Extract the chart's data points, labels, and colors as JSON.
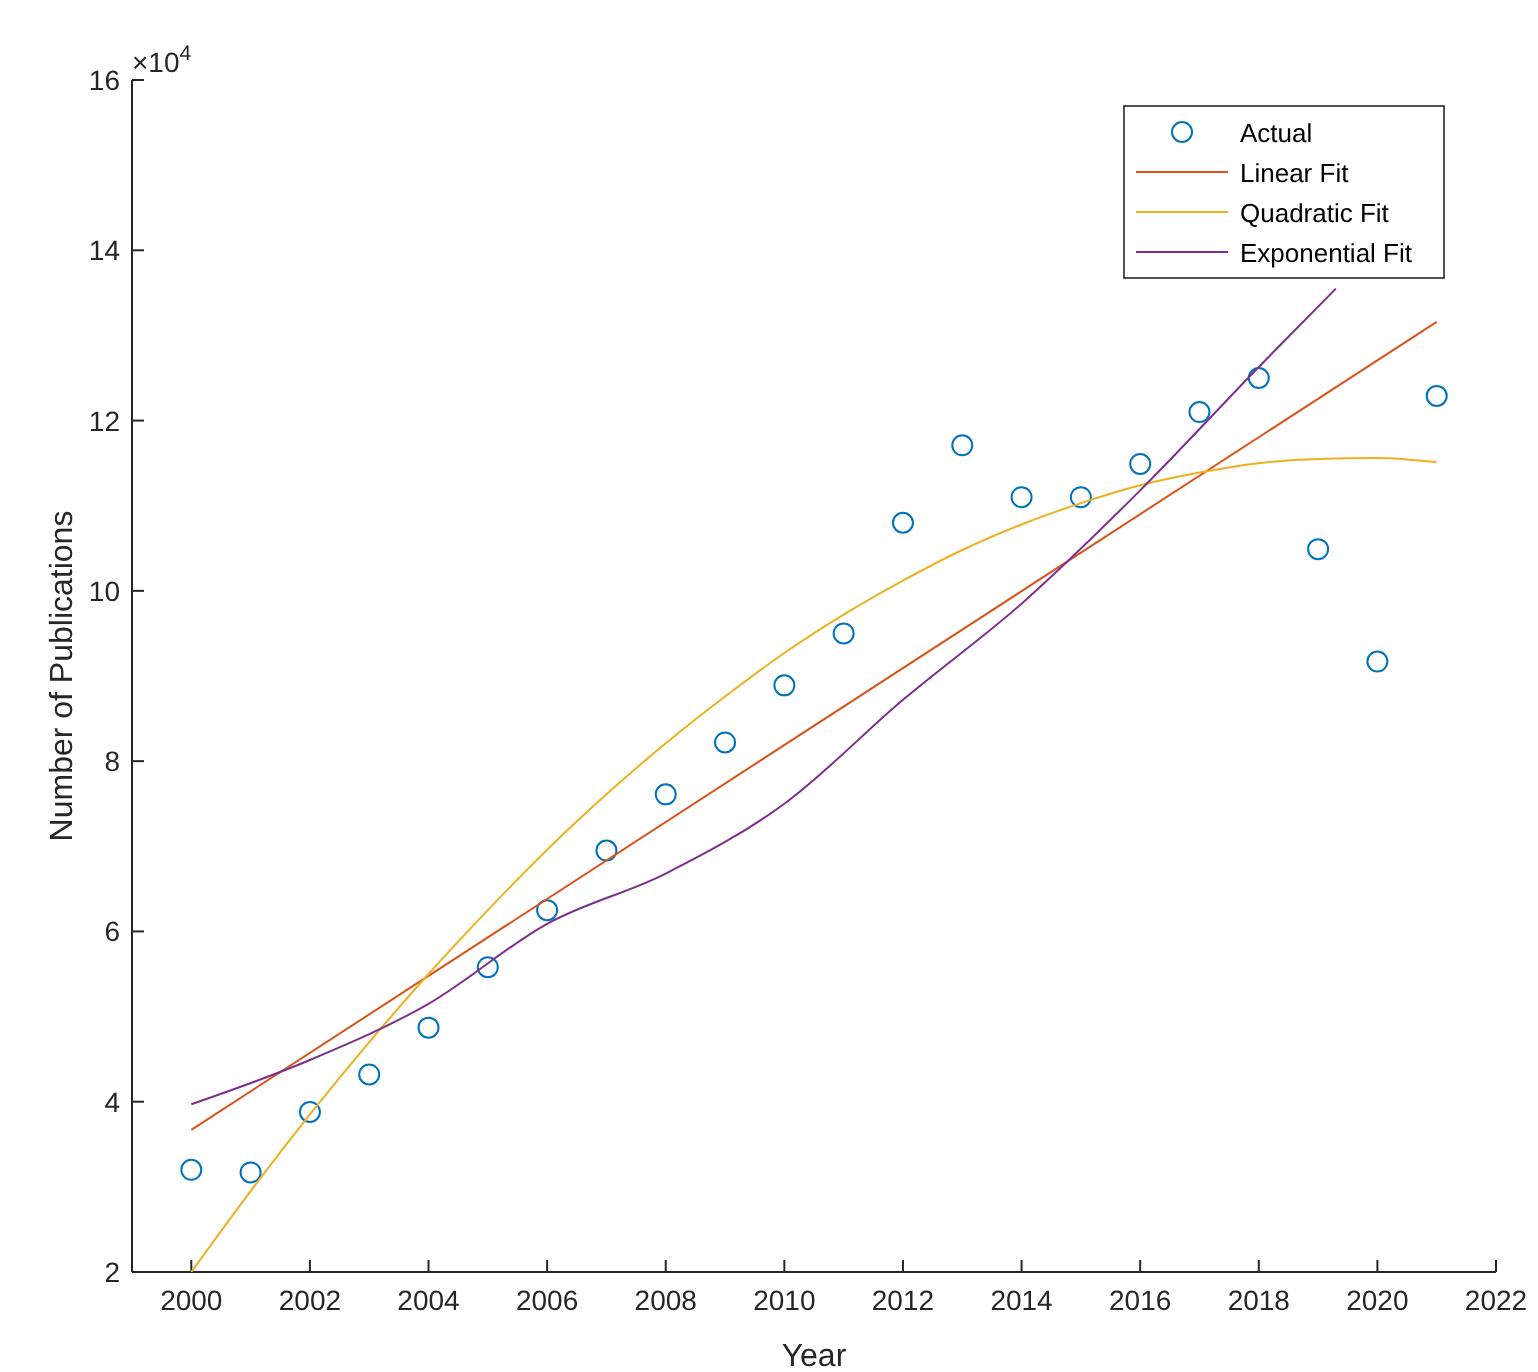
{
  "chart_data": {
    "type": "scatter",
    "xlabel": "Year",
    "ylabel": "Number of Publications",
    "annotations": [
      "×10$^{4}$"
    ],
    "xlim": [
      1999,
      2022
    ],
    "xticks": [
      2000,
      2002,
      2004,
      2006,
      2008,
      2010,
      2012,
      2014,
      2016,
      2018,
      2020,
      2022
    ],
    "ylim": [
      2,
      16
    ],
    "yticks": [
      2,
      4,
      6,
      8,
      10,
      12,
      14,
      16
    ],
    "grid": false,
    "legend": "top right",
    "series": [
      {
        "name": "Actual",
        "marker": "circle",
        "color": "#0072bd",
        "x": [
          2000,
          2001,
          2002,
          2003,
          2004,
          2005,
          2006,
          2007,
          2008,
          2009,
          2010,
          2011,
          2012,
          2013,
          2014,
          2015,
          2016,
          2017,
          2018,
          2019,
          2020,
          2021
        ],
        "values": [
          3.2,
          3.17,
          3.88,
          4.32,
          4.87,
          5.58,
          6.25,
          6.95,
          7.61,
          8.22,
          8.89,
          9.5,
          10.8,
          11.71,
          11.1,
          11.1,
          11.49,
          12.1,
          12.5,
          10.49,
          9.17,
          12.29
        ]
      },
      {
        "name": "Linear Fit",
        "type": "line",
        "marker": "none",
        "line_style": "solid",
        "color": "#d95319",
        "x": [
          2000,
          2021
        ],
        "values": [
          3.67,
          13.16
        ]
      },
      {
        "name": "Quadratic Fit",
        "type": "line",
        "marker": "none",
        "line_style": "solid",
        "color": "#edb120",
        "x": [
          2000,
          2001,
          2002,
          2003,
          2004,
          2005,
          2006,
          2007,
          2008,
          2009,
          2010,
          2011,
          2012,
          2013,
          2014,
          2015,
          2016,
          2017,
          2018,
          2019,
          2020,
          2021
        ],
        "values": [
          2.0,
          2.95,
          3.85,
          4.7,
          5.5,
          6.25,
          6.96,
          7.61,
          8.21,
          8.76,
          9.27,
          9.72,
          10.12,
          10.48,
          10.78,
          11.03,
          11.24,
          11.39,
          11.5,
          11.55,
          11.56,
          11.51
        ]
      },
      {
        "name": "Exponential Fit",
        "type": "line",
        "marker": "none",
        "line_style": "solid",
        "color": "#7e2f8e",
        "x": [
          2000,
          2002,
          2004,
          2006,
          2008,
          2010,
          2012,
          2014,
          2016,
          2018,
          2019.3
        ],
        "values": [
          3.97,
          4.49,
          5.15,
          6.09,
          6.68,
          7.5,
          8.72,
          9.85,
          11.18,
          12.63,
          13.55
        ]
      }
    ]
  }
}
